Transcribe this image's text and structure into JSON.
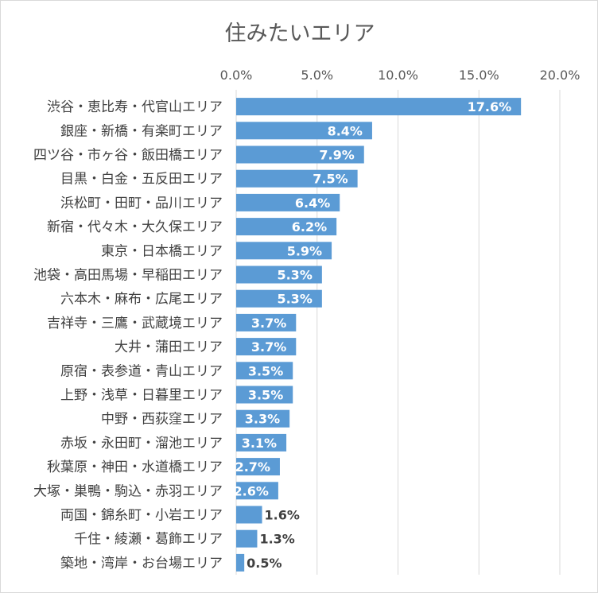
{
  "chart_data": {
    "type": "bar",
    "orientation": "horizontal",
    "title": "住みたいエリア",
    "xlabel": "",
    "ylabel": "",
    "xlim": [
      0,
      20
    ],
    "x_ticks": [
      "0.0%",
      "5.0%",
      "10.0%",
      "15.0%",
      "20.0%"
    ],
    "x_tick_values": [
      0,
      5,
      10,
      15,
      20
    ],
    "grid": true,
    "legend": "none",
    "categories": [
      "渋谷・恵比寿・代官山エリア",
      "銀座・新橋・有楽町エリア",
      "四ツ谷・市ヶ谷・飯田橋エリア",
      "目黒・白金・五反田エリア",
      "浜松町・田町・品川エリア",
      "新宿・代々木・大久保エリア",
      "東京・日本橋エリア",
      "池袋・高田馬場・早稲田エリア",
      "六本木・麻布・広尾エリア",
      "吉祥寺・三鷹・武蔵境エリア",
      "大井・蒲田エリア",
      "原宿・表参道・青山エリア",
      "上野・浅草・日暮里エリア",
      "中野・西荻窪エリア",
      "赤坂・永田町・溜池エリア",
      "秋葉原・神田・水道橋エリア",
      "大塚・巣鴨・駒込・赤羽エリア",
      "両国・錦糸町・小岩エリア",
      "千住・綾瀬・葛飾エリア",
      "築地・湾岸・お台場エリア"
    ],
    "values": [
      17.6,
      8.4,
      7.9,
      7.5,
      6.4,
      6.2,
      5.9,
      5.3,
      5.3,
      3.7,
      3.7,
      3.5,
      3.5,
      3.3,
      3.1,
      2.7,
      2.6,
      1.6,
      1.3,
      0.5
    ],
    "value_labels": [
      "17.6%",
      "8.4%",
      "7.9%",
      "7.5%",
      "6.4%",
      "6.2%",
      "5.9%",
      "5.3%",
      "5.3%",
      "3.7%",
      "3.7%",
      "3.5%",
      "3.5%",
      "3.3%",
      "3.1%",
      "2.7%",
      "2.6%",
      "1.6%",
      "1.3%",
      "0.5%"
    ],
    "bar_color": "#5b9bd5",
    "inside_label_color": "#ffffff",
    "outside_label_color": "#404040"
  }
}
